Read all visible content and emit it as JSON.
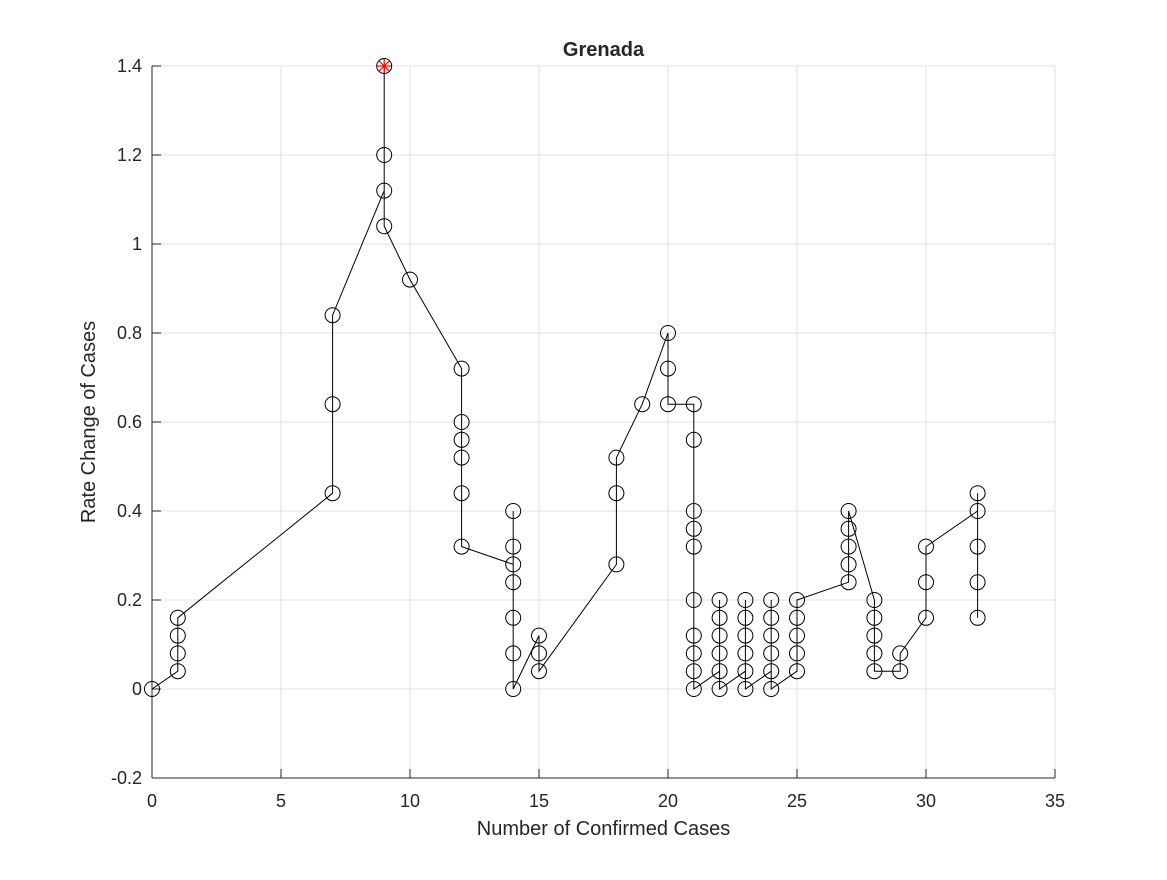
{
  "chart_data": {
    "type": "line",
    "title": "Grenada",
    "xlabel": "Number of Confirmed Cases",
    "ylabel": "Rate Change of Cases",
    "xlim": [
      0,
      35
    ],
    "ylim": [
      -0.2,
      1.4
    ],
    "xticks": [
      0,
      5,
      10,
      15,
      20,
      25,
      30,
      35
    ],
    "yticks": [
      -0.2,
      0,
      0.2,
      0.4,
      0.6,
      0.8,
      1,
      1.2,
      1.4
    ],
    "xtick_labels": [
      "0",
      "5",
      "10",
      "15",
      "20",
      "25",
      "30",
      "35"
    ],
    "ytick_labels": [
      "-0.2",
      "0",
      "0.2",
      "0.4",
      "0.6",
      "0.8",
      "1",
      "1.2",
      "1.4"
    ],
    "grid": true,
    "series": [
      {
        "marker": "circle",
        "line_color": "#000000",
        "x": [
          0,
          1,
          1,
          1,
          1,
          7,
          7,
          7,
          9,
          9,
          9,
          9,
          10,
          12,
          12,
          12,
          12,
          12,
          12,
          14,
          14,
          14,
          14,
          14,
          14,
          14,
          15,
          15,
          15,
          18,
          18,
          18,
          19,
          20,
          20,
          20,
          21,
          21,
          21,
          21,
          21,
          21,
          21,
          21,
          21,
          21,
          22,
          22,
          22,
          22,
          22,
          22,
          23,
          23,
          23,
          23,
          23,
          23,
          24,
          24,
          24,
          24,
          24,
          24,
          25,
          25,
          25,
          25,
          25,
          27,
          27,
          27,
          27,
          27,
          28,
          28,
          28,
          28,
          28,
          29,
          29,
          30,
          30,
          30,
          32,
          32,
          32,
          32,
          32
        ],
        "y": [
          0,
          0.04,
          0.08,
          0.12,
          0.16,
          0.44,
          0.64,
          0.84,
          1.12,
          1.2,
          1.4,
          1.04,
          0.92,
          0.72,
          0.6,
          0.56,
          0.52,
          0.44,
          0.32,
          0.28,
          0.4,
          0.32,
          0.24,
          0.16,
          0.08,
          0,
          0.12,
          0.08,
          0.04,
          0.28,
          0.44,
          0.52,
          0.64,
          0.8,
          0.72,
          0.64,
          0.64,
          0.56,
          0.4,
          0.36,
          0.32,
          0.2,
          0.12,
          0.08,
          0.04,
          0,
          0.04,
          0.08,
          0.12,
          0.16,
          0.2,
          0,
          0.04,
          0.08,
          0.12,
          0.16,
          0.2,
          0,
          0.04,
          0.08,
          0.12,
          0.16,
          0.2,
          0,
          0.04,
          0.08,
          0.12,
          0.16,
          0.2,
          0.24,
          0.28,
          0.32,
          0.36,
          0.4,
          0.2,
          0.16,
          0.12,
          0.08,
          0.04,
          0.04,
          0.08,
          0.16,
          0.24,
          0.32,
          0.4,
          0.44,
          0.32,
          0.24,
          0.16
        ]
      }
    ],
    "highlight": {
      "x": 9,
      "y": 1.4,
      "marker": "asterisk-in-circle",
      "color": "#ff0000"
    }
  }
}
